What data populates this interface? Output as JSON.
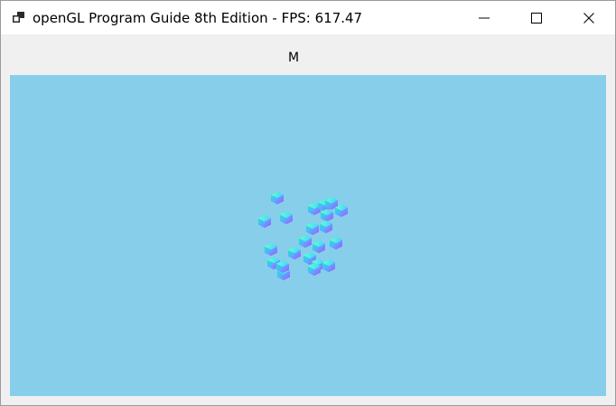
{
  "window": {
    "title": "openGL Program Guide 8th Edition - FPS: 617.47",
    "icon": "app-window-icon",
    "controls": {
      "minimize_icon": "minimize-icon",
      "maximize_icon": "maximize-icon",
      "close_icon": "close-icon"
    }
  },
  "toolbar": {
    "label": "M"
  },
  "viewport": {
    "background_color": "#87ceeb",
    "object_count": 22,
    "object_shape": "cube"
  },
  "colors": {
    "titlebar": "#ffffff",
    "client": "#f0f0f0",
    "viewport": "#87ceeb"
  }
}
